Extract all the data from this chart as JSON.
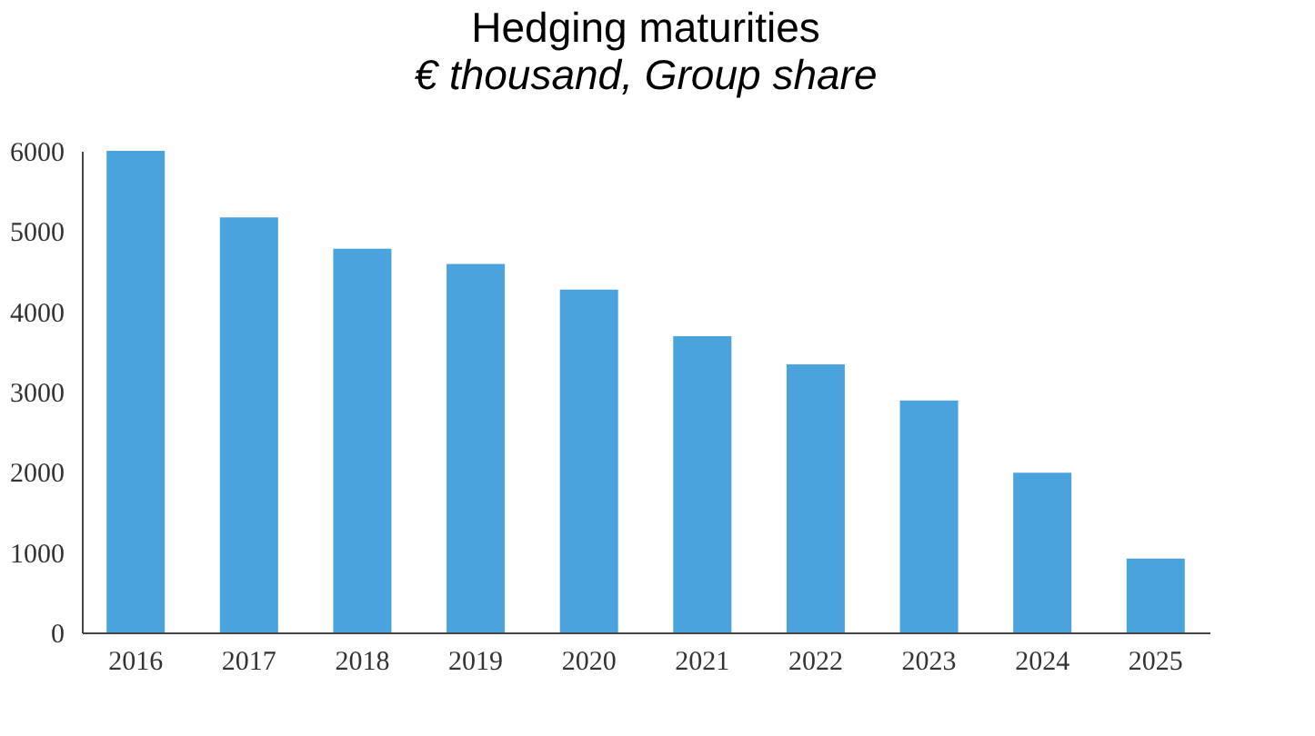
{
  "chart_data": {
    "type": "bar",
    "title": "Hedging maturities",
    "subtitle": "€ thousand, Group share",
    "categories": [
      "2016",
      "2017",
      "2018",
      "2019",
      "2020",
      "2021",
      "2022",
      "2023",
      "2024",
      "2025"
    ],
    "values": [
      6000,
      5170,
      4780,
      4590,
      4270,
      3690,
      3340,
      2890,
      1990,
      920
    ],
    "color": "#4ba3dd",
    "ylim": [
      0,
      6000
    ],
    "yticks": [
      0,
      1000,
      2000,
      3000,
      4000,
      5000,
      6000
    ],
    "grid": false
  }
}
